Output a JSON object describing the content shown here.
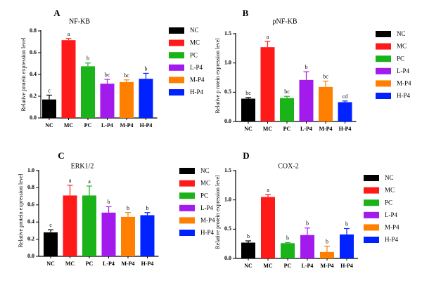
{
  "chart_data": [
    {
      "type": "bar",
      "panel": "A",
      "title": "NF-KB",
      "ylabel": "Relative protein expression level",
      "ylim": [
        0,
        0.8
      ],
      "yticks": [
        "0.0",
        "0.2",
        "0.4",
        "0.6",
        "0.8"
      ],
      "categories": [
        "NC",
        "MC",
        "PC",
        "L-P4",
        "M-P4",
        "H-P4"
      ],
      "values": [
        0.17,
        0.715,
        0.475,
        0.315,
        0.33,
        0.36
      ],
      "errors": [
        0.04,
        0.015,
        0.03,
        0.04,
        0.02,
        0.05
      ],
      "labels": [
        "c",
        "a",
        "b",
        "bc",
        "bc",
        "b"
      ],
      "legend": [
        "NC",
        "MC",
        "PC",
        "L-P4",
        "M-P4",
        "H-P4"
      ]
    },
    {
      "type": "bar",
      "panel": "B",
      "title": "pNF-KB",
      "ylabel": "Relative p rotein expression level",
      "ylim": [
        0,
        1.5
      ],
      "yticks": [
        "0.0",
        "0.5",
        "1.0",
        "1.5"
      ],
      "categories": [
        "NC",
        "MC",
        "PC",
        "L-P4",
        "M-P4",
        "H-P4"
      ],
      "values": [
        0.39,
        1.27,
        0.4,
        0.71,
        0.59,
        0.33
      ],
      "errors": [
        0.02,
        0.1,
        0.03,
        0.14,
        0.1,
        0.02
      ],
      "labels": [
        "bc",
        "a",
        "bc",
        "b",
        "bc",
        "cd"
      ],
      "legend": [
        "NC",
        "MC",
        "PC",
        "L-P4",
        "M-P4",
        "H-P4"
      ]
    },
    {
      "type": "bar",
      "panel": "C",
      "title": "ERK1/2",
      "ylabel": "Relative protein expression level",
      "ylim": [
        0,
        1.0
      ],
      "yticks": [
        "0.0",
        "0.2",
        "0.4",
        "0.6",
        "0.8",
        "1.0"
      ],
      "categories": [
        "NC",
        "MC",
        "PC",
        "L-P4",
        "M-P4",
        "H-P4"
      ],
      "values": [
        0.28,
        0.71,
        0.71,
        0.51,
        0.46,
        0.48
      ],
      "errors": [
        0.03,
        0.12,
        0.11,
        0.07,
        0.05,
        0.03
      ],
      "labels": [
        "c",
        "a",
        "a",
        "b",
        "b",
        "b"
      ],
      "legend": [
        "NC",
        "MC",
        "PC",
        "L-P4",
        "M-P4",
        "H-P4"
      ]
    },
    {
      "type": "bar",
      "panel": "D",
      "title": "COX-2",
      "ylabel": "Relative protein expression level",
      "ylim": [
        0,
        1.5
      ],
      "yticks": [
        "0.0",
        "0.5",
        "1.0",
        "1.5"
      ],
      "categories": [
        "NC",
        "MC",
        "PC",
        "L-P4",
        "M-P4",
        "H-P4"
      ],
      "values": [
        0.27,
        1.05,
        0.26,
        0.4,
        0.11,
        0.41
      ],
      "errors": [
        0.03,
        0.04,
        0.01,
        0.12,
        0.1,
        0.1
      ],
      "labels": [
        "b",
        "a",
        "b",
        "b",
        "b",
        "b"
      ],
      "legend": [
        "NC",
        "MC",
        "PC",
        "L-P4",
        "M-P4",
        "H-P4"
      ]
    }
  ],
  "colors": {
    "NC": "#000000",
    "MC": "#ff1a1a",
    "PC": "#1ab31a",
    "L-P4": "#a31aed",
    "M-P4": "#ff8000",
    "H-P4": "#0022ff",
    "axis": "#000000",
    "label": "#000000"
  }
}
